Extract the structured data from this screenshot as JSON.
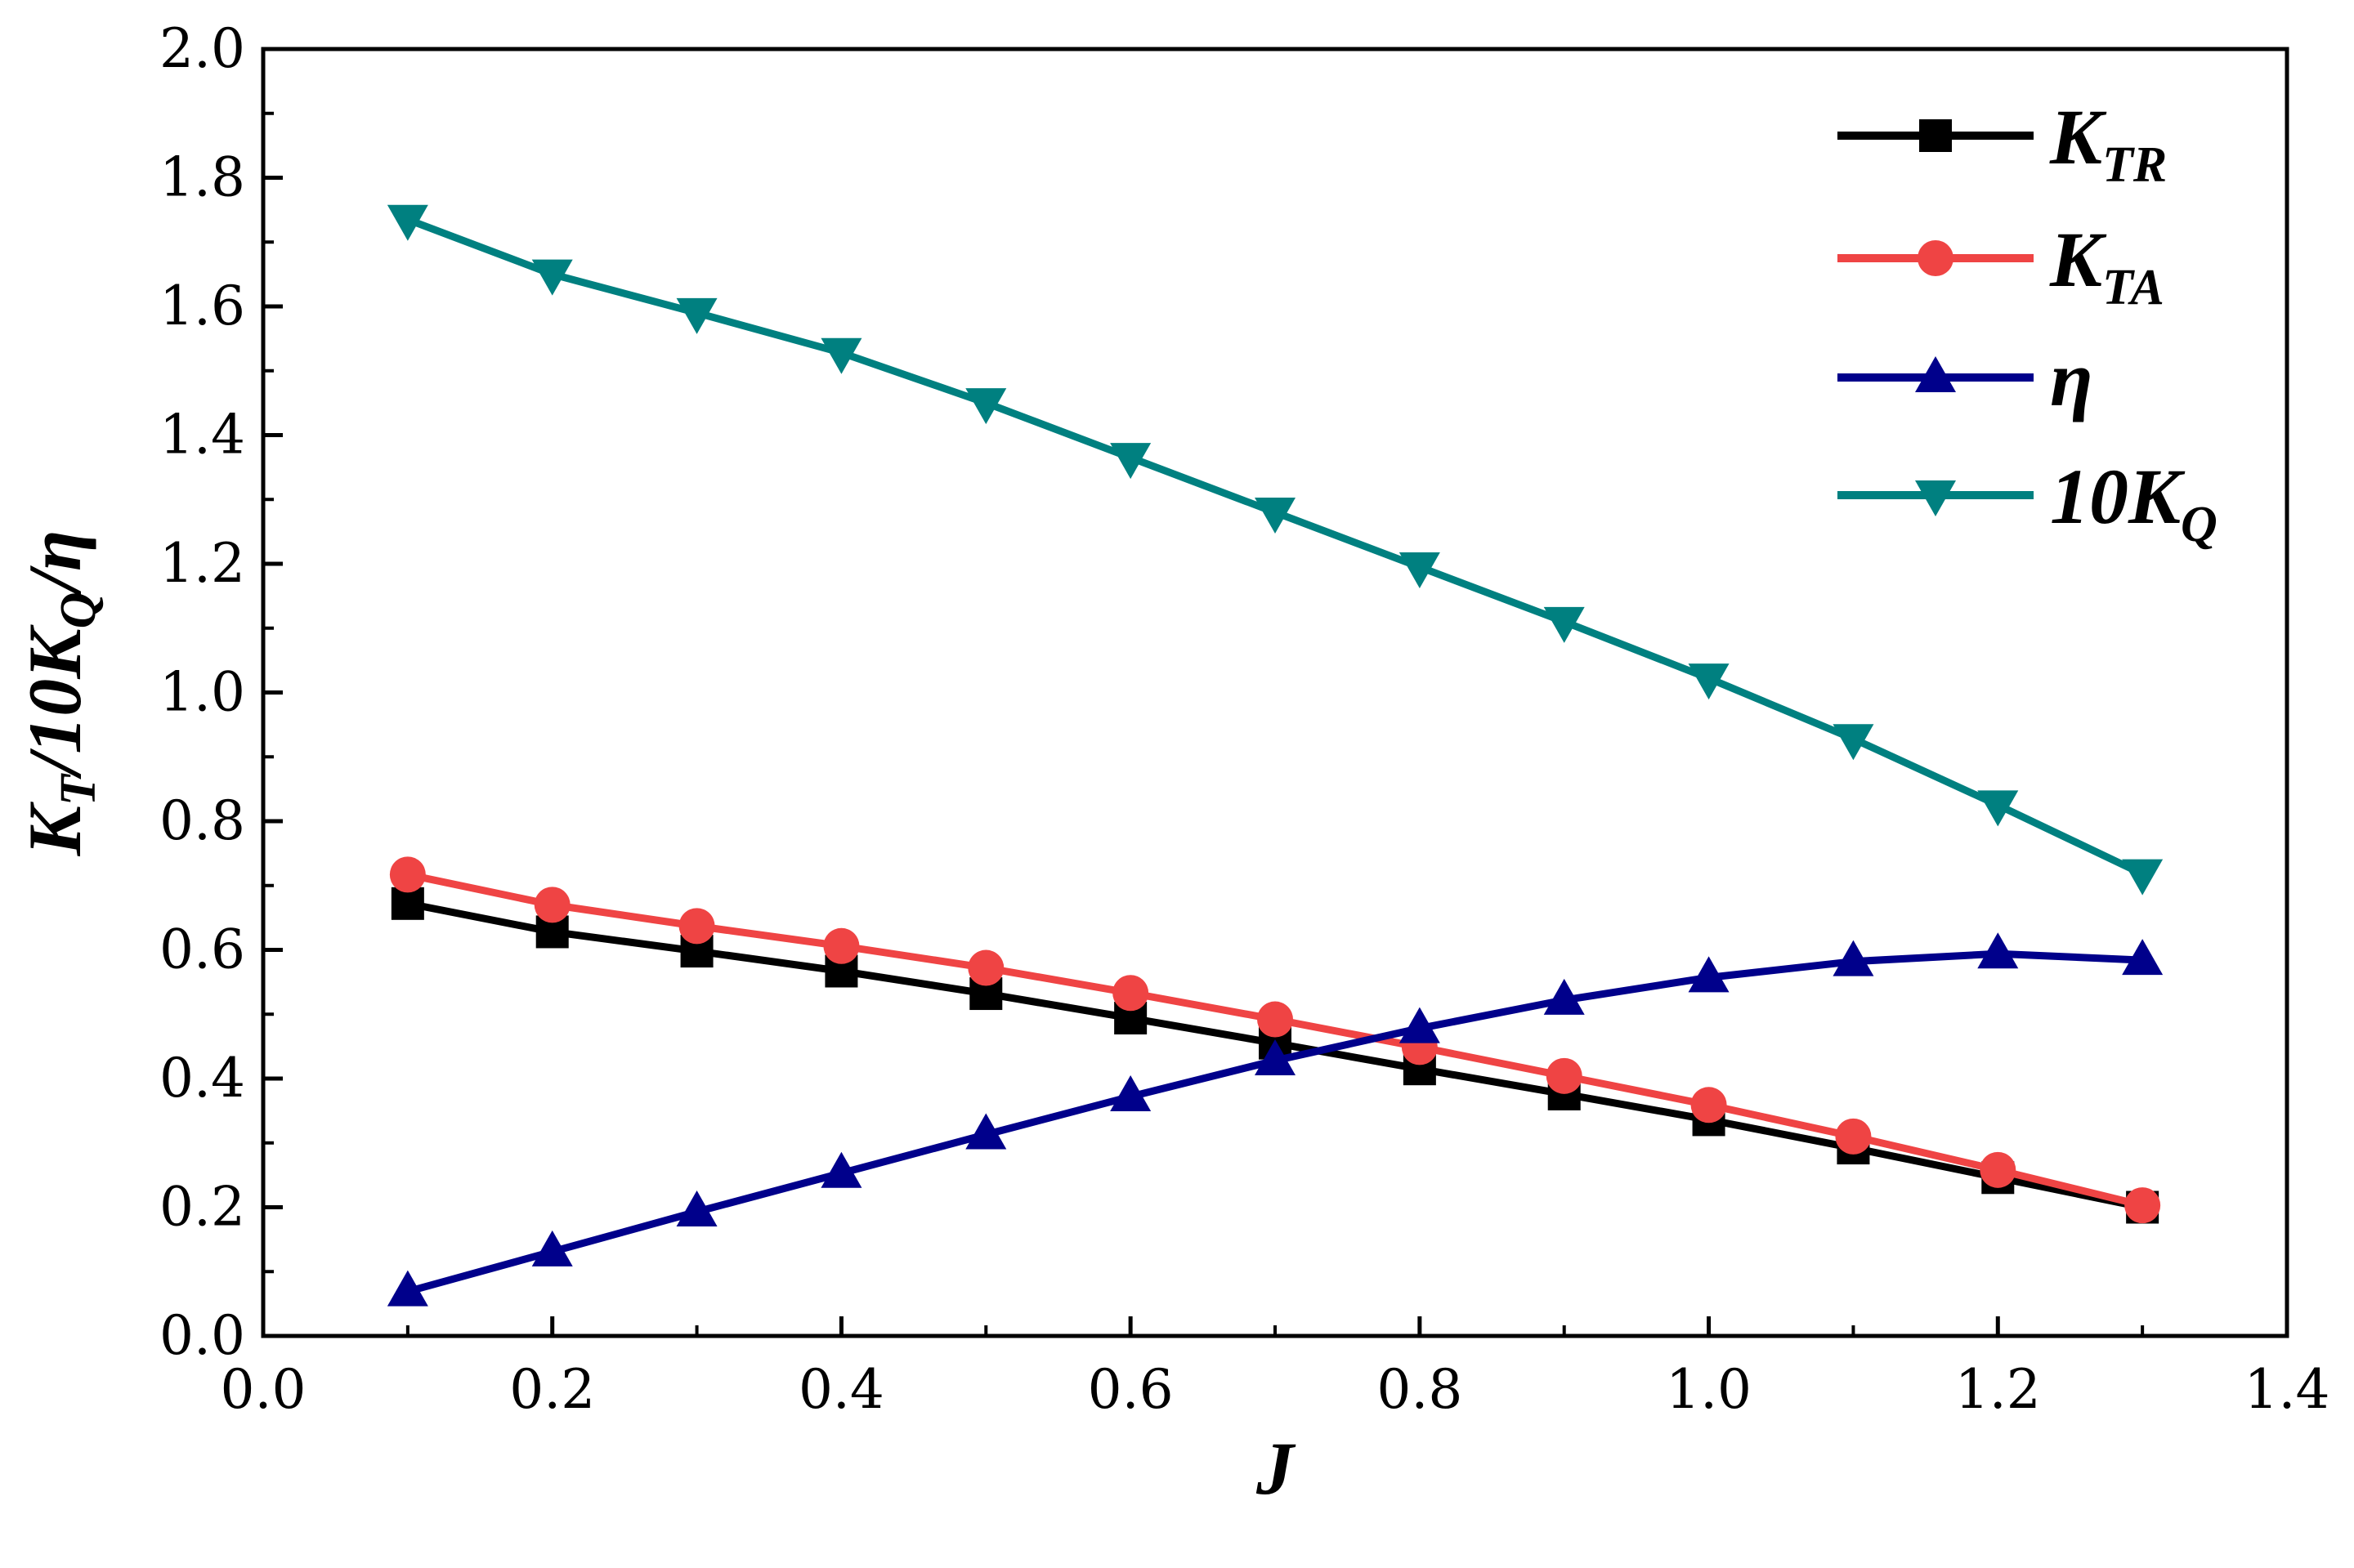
{
  "chart_data": {
    "type": "line",
    "title": "",
    "xlabel": "J",
    "ylabel": {
      "prefix": "K",
      "sub1": "T",
      "middle": "/10K",
      "sub2": "Q",
      "suffix": "/η"
    },
    "xlim": [
      0.0,
      1.4
    ],
    "ylim": [
      0.0,
      2.0
    ],
    "x_ticks": [
      "0.0",
      "0.2",
      "0.4",
      "0.6",
      "0.8",
      "1.0",
      "1.2",
      "1.4"
    ],
    "y_ticks": [
      "0.0",
      "0.2",
      "0.4",
      "0.6",
      "0.8",
      "1.0",
      "1.2",
      "1.4",
      "1.6",
      "1.8",
      "2.0"
    ],
    "grid": false,
    "legend_position": "top-right",
    "x": [
      0.1,
      0.2,
      0.3,
      0.4,
      0.5,
      0.6,
      0.7,
      0.8,
      0.9,
      1.0,
      1.1,
      1.2,
      1.3
    ],
    "series": [
      {
        "name": "K_TR",
        "label_main": "K",
        "label_sub": "TR",
        "color": "#000000",
        "marker": "square",
        "values": [
          0.672,
          0.628,
          0.598,
          0.567,
          0.532,
          0.494,
          0.455,
          0.415,
          0.376,
          0.336,
          0.292,
          0.246,
          0.2
        ]
      },
      {
        "name": "K_TA",
        "label_main": "K",
        "label_sub": "TA",
        "color": "#ef4444",
        "marker": "circle",
        "values": [
          0.717,
          0.67,
          0.637,
          0.606,
          0.572,
          0.533,
          0.492,
          0.449,
          0.404,
          0.359,
          0.31,
          0.258,
          0.203
        ]
      },
      {
        "name": "η",
        "label_main": "η",
        "label_sub": "",
        "color": "#00008b",
        "marker": "triangle-up",
        "values": [
          0.069,
          0.131,
          0.193,
          0.253,
          0.313,
          0.372,
          0.428,
          0.478,
          0.522,
          0.557,
          0.582,
          0.594,
          0.584
        ]
      },
      {
        "name": "10K_Q",
        "label_main": "10K",
        "label_sub": "Q",
        "color": "#008080",
        "marker": "triangle-down",
        "values": [
          1.735,
          1.65,
          1.59,
          1.528,
          1.45,
          1.365,
          1.28,
          1.195,
          1.11,
          1.022,
          0.928,
          0.825,
          0.718
        ]
      }
    ]
  }
}
